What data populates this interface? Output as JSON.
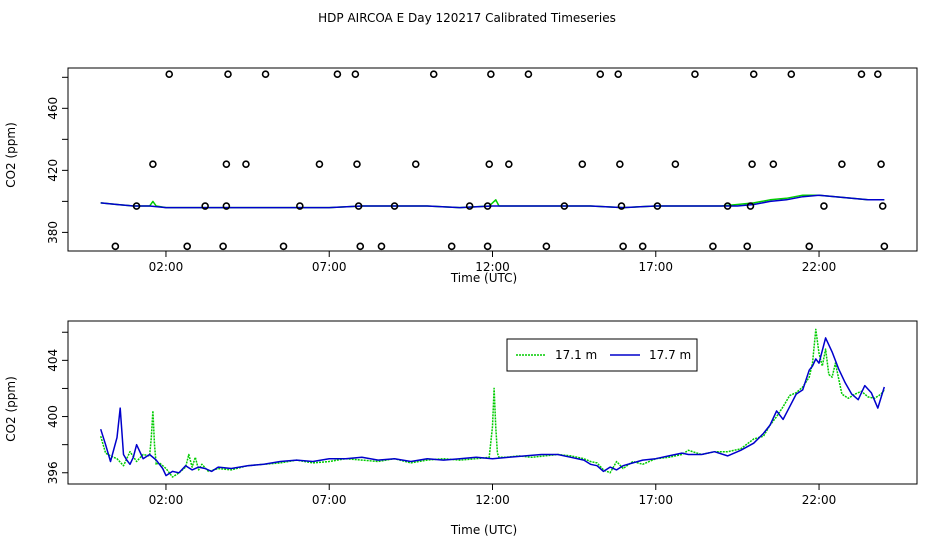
{
  "title": "HDP AIRCOA E  Day 120217  Calibrated Timeseries",
  "colors": {
    "s17_1": "#00cc00",
    "s17_7": "#0000cc",
    "axis": "#000000",
    "points": "#000000"
  },
  "chart_data": [
    {
      "type": "scatter",
      "xlabel": "Time (UTC)",
      "ylabel": "CO2 (ppm)",
      "xlim": [
        -1.0,
        25.0
      ],
      "ylim": [
        368,
        486
      ],
      "xticks": [
        2,
        7,
        12,
        17,
        22
      ],
      "xtick_labels": [
        "02:00",
        "07:00",
        "12:00",
        "17:00",
        "22:00"
      ],
      "yticks": [
        380,
        420,
        460
      ],
      "yticks_minor": [
        400,
        440,
        480
      ],
      "ytick_labels": [
        "380",
        "420",
        "460"
      ],
      "calibration_points": [
        {
          "x": 0.45,
          "y": 371
        },
        {
          "x": 1.1,
          "y": 397
        },
        {
          "x": 1.6,
          "y": 424
        },
        {
          "x": 2.1,
          "y": 482
        },
        {
          "x": 2.65,
          "y": 371
        },
        {
          "x": 3.2,
          "y": 397
        },
        {
          "x": 3.75,
          "y": 371
        },
        {
          "x": 3.85,
          "y": 397
        },
        {
          "x": 3.85,
          "y": 424
        },
        {
          "x": 3.9,
          "y": 482
        },
        {
          "x": 4.45,
          "y": 424
        },
        {
          "x": 5.05,
          "y": 482
        },
        {
          "x": 5.6,
          "y": 371
        },
        {
          "x": 6.1,
          "y": 397
        },
        {
          "x": 6.7,
          "y": 424
        },
        {
          "x": 7.25,
          "y": 482
        },
        {
          "x": 7.8,
          "y": 482
        },
        {
          "x": 7.85,
          "y": 424
        },
        {
          "x": 7.9,
          "y": 397
        },
        {
          "x": 7.95,
          "y": 371
        },
        {
          "x": 8.6,
          "y": 371
        },
        {
          "x": 9.0,
          "y": 397
        },
        {
          "x": 9.65,
          "y": 424
        },
        {
          "x": 10.2,
          "y": 482
        },
        {
          "x": 10.75,
          "y": 371
        },
        {
          "x": 11.3,
          "y": 397
        },
        {
          "x": 11.85,
          "y": 397
        },
        {
          "x": 11.85,
          "y": 371
        },
        {
          "x": 11.9,
          "y": 424
        },
        {
          "x": 11.95,
          "y": 482
        },
        {
          "x": 12.5,
          "y": 424
        },
        {
          "x": 13.1,
          "y": 482
        },
        {
          "x": 13.65,
          "y": 371
        },
        {
          "x": 14.2,
          "y": 397
        },
        {
          "x": 14.75,
          "y": 424
        },
        {
          "x": 15.3,
          "y": 482
        },
        {
          "x": 15.85,
          "y": 482
        },
        {
          "x": 15.9,
          "y": 424
        },
        {
          "x": 15.95,
          "y": 397
        },
        {
          "x": 16.0,
          "y": 371
        },
        {
          "x": 16.6,
          "y": 371
        },
        {
          "x": 17.05,
          "y": 397
        },
        {
          "x": 17.6,
          "y": 424
        },
        {
          "x": 18.2,
          "y": 482
        },
        {
          "x": 18.75,
          "y": 371
        },
        {
          "x": 19.2,
          "y": 397
        },
        {
          "x": 19.8,
          "y": 371
        },
        {
          "x": 19.9,
          "y": 397
        },
        {
          "x": 19.95,
          "y": 424
        },
        {
          "x": 20.0,
          "y": 482
        },
        {
          "x": 20.6,
          "y": 424
        },
        {
          "x": 21.15,
          "y": 482
        },
        {
          "x": 21.7,
          "y": 371
        },
        {
          "x": 22.15,
          "y": 397
        },
        {
          "x": 22.7,
          "y": 424
        },
        {
          "x": 23.3,
          "y": 482
        },
        {
          "x": 23.8,
          "y": 482
        },
        {
          "x": 23.9,
          "y": 424
        },
        {
          "x": 23.95,
          "y": 397
        },
        {
          "x": 24.0,
          "y": 371
        }
      ],
      "series": [
        {
          "name": "17.1 m",
          "x": [
            0.0,
            0.5,
            1.0,
            1.5,
            1.6,
            1.7,
            2.0,
            3.0,
            4.0,
            5.0,
            6.0,
            7.0,
            8.0,
            9.0,
            10.0,
            11.0,
            11.9,
            12.1,
            12.2,
            12.4,
            13.0,
            14.0,
            15.0,
            16.0,
            17.0,
            18.0,
            19.0,
            19.5,
            20.0,
            20.5,
            21.0,
            21.5,
            22.0,
            22.5,
            23.0,
            23.5,
            24.0
          ],
          "y": [
            399,
            398,
            397,
            397,
            400,
            397,
            396,
            396,
            396,
            396,
            396,
            396,
            397,
            397,
            397,
            396,
            397,
            401,
            397,
            397,
            397,
            397,
            397,
            396,
            397,
            397,
            397,
            398,
            399,
            401,
            402,
            404,
            404,
            403,
            402,
            401,
            401
          ]
        },
        {
          "name": "17.7 m",
          "x": [
            0.0,
            0.5,
            1.0,
            1.5,
            2.0,
            3.0,
            4.0,
            5.0,
            6.0,
            7.0,
            8.0,
            9.0,
            10.0,
            11.0,
            12.0,
            13.0,
            14.0,
            15.0,
            16.0,
            17.0,
            18.0,
            19.0,
            19.5,
            20.0,
            20.5,
            21.0,
            21.5,
            22.0,
            22.5,
            23.0,
            23.5,
            24.0
          ],
          "y": [
            399,
            398,
            397,
            397,
            396,
            396,
            396,
            396,
            396,
            396,
            397,
            397,
            397,
            396,
            397,
            397,
            397,
            397,
            396,
            397,
            397,
            397,
            397,
            398,
            400,
            401,
            403,
            404,
            403,
            402,
            401,
            401
          ]
        }
      ]
    },
    {
      "type": "line",
      "xlabel": "Time (UTC)",
      "ylabel": "CO2 (ppm)",
      "xlim": [
        -1.0,
        25.0
      ],
      "ylim": [
        395.2,
        406.8
      ],
      "xticks": [
        2,
        7,
        12,
        17,
        22
      ],
      "xtick_labels": [
        "02:00",
        "07:00",
        "12:00",
        "17:00",
        "22:00"
      ],
      "yticks": [
        396,
        400,
        404
      ],
      "yticks_minor": [
        398,
        402,
        406
      ],
      "ytick_labels": [
        "396",
        "400",
        "404"
      ],
      "legend": "top-right",
      "series": [
        {
          "name": "17.1 m",
          "color": "#00cc00",
          "x": [
            0.0,
            0.15,
            0.3,
            0.5,
            0.7,
            0.9,
            1.1,
            1.3,
            1.5,
            1.55,
            1.6,
            1.65,
            1.7,
            1.8,
            2.0,
            2.2,
            2.4,
            2.6,
            2.7,
            2.8,
            2.9,
            3.0,
            3.1,
            3.3,
            3.6,
            4.0,
            4.5,
            5.0,
            5.5,
            6.0,
            6.5,
            7.0,
            7.5,
            8.0,
            8.5,
            9.0,
            9.5,
            10.0,
            10.5,
            11.0,
            11.5,
            11.9,
            12.0,
            12.05,
            12.1,
            12.15,
            12.2,
            12.4,
            12.8,
            13.2,
            13.6,
            14.0,
            14.4,
            14.8,
            15.0,
            15.2,
            15.4,
            15.6,
            15.8,
            16.0,
            16.3,
            16.6,
            17.0,
            17.4,
            17.8,
            18.0,
            18.4,
            18.8,
            19.2,
            19.6,
            20.0,
            20.3,
            20.5,
            20.7,
            20.9,
            21.1,
            21.3,
            21.5,
            21.7,
            21.8,
            21.9,
            22.0,
            22.1,
            22.2,
            22.3,
            22.4,
            22.5,
            22.7,
            22.9,
            23.1,
            23.3,
            23.5,
            23.7,
            23.9,
            24.0
          ],
          "y": [
            398.6,
            397.4,
            397.2,
            397.0,
            396.5,
            397.5,
            396.8,
            397.3,
            397.2,
            398.5,
            400.4,
            398.0,
            396.6,
            396.7,
            396.3,
            395.7,
            396.0,
            396.4,
            397.3,
            396.4,
            397.1,
            396.2,
            396.6,
            396.1,
            396.3,
            396.2,
            396.5,
            396.6,
            396.7,
            396.9,
            396.7,
            396.8,
            397.0,
            396.9,
            396.8,
            397.0,
            396.7,
            396.9,
            397.0,
            396.9,
            397.0,
            397.1,
            399.3,
            402.0,
            399.2,
            397.4,
            397.1,
            397.1,
            397.2,
            397.1,
            397.2,
            397.3,
            397.2,
            397.0,
            396.8,
            396.7,
            396.2,
            396.0,
            396.8,
            396.3,
            396.8,
            396.6,
            397.0,
            397.1,
            397.3,
            397.6,
            397.3,
            397.5,
            397.5,
            397.7,
            398.4,
            398.6,
            399.4,
            400.0,
            400.7,
            401.5,
            401.7,
            402.1,
            402.8,
            403.8,
            406.2,
            404.5,
            403.6,
            404.8,
            403.0,
            402.8,
            403.8,
            401.6,
            401.3,
            401.6,
            401.8,
            401.4,
            401.3,
            401.6,
            401.9
          ]
        },
        {
          "name": "17.7 m",
          "color": "#0000cc",
          "x": [
            0.0,
            0.15,
            0.3,
            0.5,
            0.6,
            0.7,
            0.8,
            0.9,
            1.0,
            1.1,
            1.3,
            1.5,
            1.7,
            1.9,
            2.0,
            2.2,
            2.4,
            2.6,
            2.8,
            3.0,
            3.2,
            3.4,
            3.6,
            4.0,
            4.5,
            5.0,
            5.5,
            6.0,
            6.5,
            7.0,
            7.5,
            8.0,
            8.5,
            9.0,
            9.5,
            10.0,
            10.5,
            11.0,
            11.5,
            12.0,
            12.5,
            13.0,
            13.5,
            14.0,
            14.4,
            14.8,
            15.0,
            15.2,
            15.4,
            15.6,
            15.8,
            16.0,
            16.3,
            16.6,
            17.0,
            17.4,
            17.8,
            18.0,
            18.4,
            18.8,
            19.2,
            19.6,
            20.0,
            20.3,
            20.5,
            20.7,
            20.9,
            21.1,
            21.3,
            21.5,
            21.7,
            21.8,
            21.9,
            22.0,
            22.2,
            22.4,
            22.6,
            22.8,
            23.0,
            23.2,
            23.4,
            23.6,
            23.8,
            24.0
          ],
          "y": [
            399.1,
            398.0,
            396.8,
            398.5,
            400.6,
            397.3,
            396.9,
            396.6,
            397.1,
            398.0,
            397.0,
            397.3,
            396.9,
            396.3,
            395.8,
            396.1,
            396.0,
            396.5,
            396.2,
            396.4,
            396.3,
            396.1,
            396.4,
            396.3,
            396.5,
            396.6,
            396.8,
            396.9,
            396.8,
            397.0,
            397.0,
            397.1,
            396.9,
            397.0,
            396.8,
            397.0,
            396.9,
            397.0,
            397.1,
            397.0,
            397.1,
            397.2,
            397.3,
            397.3,
            397.1,
            396.9,
            396.6,
            396.5,
            396.1,
            396.4,
            396.2,
            396.5,
            396.7,
            396.9,
            397.0,
            397.2,
            397.4,
            397.3,
            397.3,
            397.5,
            397.2,
            397.6,
            398.1,
            398.8,
            399.4,
            400.4,
            399.8,
            400.7,
            401.6,
            401.9,
            403.3,
            403.6,
            404.1,
            403.8,
            405.6,
            404.6,
            403.4,
            402.4,
            401.6,
            401.2,
            402.2,
            401.7,
            400.6,
            402.1
          ]
        }
      ]
    }
  ]
}
